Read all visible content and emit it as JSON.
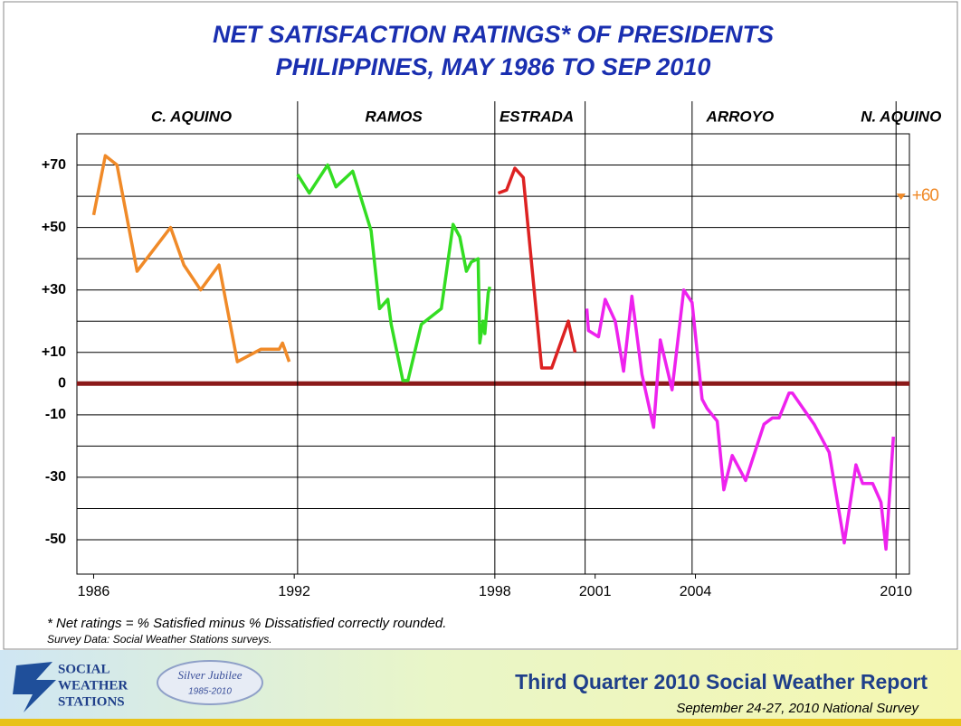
{
  "chart_data": {
    "type": "line",
    "title": "NET SATISFACTION RATINGS* OF PRESIDENTS",
    "subtitle": "PHILIPPINES, MAY 1986 TO SEP 2010",
    "xlim": [
      1985.5,
      2010.4
    ],
    "xticks": [
      1986,
      1992,
      1998,
      2001,
      2004,
      2010
    ],
    "ylim": [
      -61,
      80
    ],
    "yticks": [
      {
        "value": 70,
        "label": "+70"
      },
      {
        "value": 50,
        "label": "+50"
      },
      {
        "value": 30,
        "label": "+30"
      },
      {
        "value": 10,
        "label": "+10"
      },
      0,
      -10,
      -30,
      -50
    ],
    "minor_yticks": [
      60,
      40,
      20,
      -20,
      -40
    ],
    "grid": true,
    "zero_line_color": "#8b1a1a",
    "dividers": [
      1992.1,
      1998,
      2000.7,
      2003.9,
      2010
    ],
    "series": [
      {
        "name": "C. AQUINO",
        "color": "#f08a28",
        "x": [
          1986.0,
          1986.35,
          1986.7,
          1987.3,
          1988.3,
          1988.7,
          1989.2,
          1989.75,
          1990.3,
          1991.0,
          1991.55,
          1991.65,
          1991.85
        ],
        "values": [
          54,
          73,
          70,
          36,
          50,
          38,
          30,
          38,
          7,
          11,
          11,
          13,
          7
        ]
      },
      {
        "name": "RAMOS",
        "color": "#33dd22",
        "x": [
          1992.1,
          1992.45,
          1993.0,
          1993.25,
          1993.75,
          1994.3,
          1994.55,
          1994.8,
          1994.9,
          1995.25,
          1995.4,
          1995.8,
          1996.4,
          1996.75,
          1996.95,
          1997.15,
          1997.3,
          1997.5,
          1997.55,
          1997.65,
          1997.7,
          1997.8,
          1997.85
        ],
        "values": [
          67,
          61,
          70,
          63,
          68,
          49,
          24,
          27,
          19,
          1,
          1,
          19,
          24,
          51,
          47,
          36,
          39,
          40,
          13,
          20,
          16,
          29,
          31
        ]
      },
      {
        "name": "ESTRADA",
        "color": "#dd2222",
        "x": [
          1998.1,
          1998.35,
          1998.6,
          1998.85,
          1999.4,
          1999.7,
          2000.2,
          2000.4
        ],
        "values": [
          61,
          62,
          69,
          66,
          5,
          5,
          20,
          10
        ]
      },
      {
        "name": "ARROYO",
        "color": "#ee22ee",
        "x": [
          2000.75,
          2000.8,
          2001.1,
          2001.3,
          2001.6,
          2001.85,
          2002.1,
          2002.4,
          2002.75,
          2002.95,
          2003.3,
          2003.65,
          2003.9,
          2004.2,
          2004.35,
          2004.65,
          2004.85,
          2005.1,
          2005.5,
          2006.05,
          2006.3,
          2006.5,
          2006.8,
          2006.9,
          2007.55,
          2008.0,
          2008.45,
          2008.8,
          2009.0,
          2009.3,
          2009.55,
          2009.7,
          2009.92
        ],
        "values": [
          24,
          17,
          15,
          27,
          20,
          4,
          28,
          3,
          -14,
          14,
          -2,
          30,
          26,
          -5,
          -8,
          -12,
          -34,
          -23,
          -31,
          -13,
          -11,
          -11,
          -3,
          -3,
          -13,
          -22,
          -51,
          -26,
          -32,
          -32,
          -38,
          -53,
          -17
        ]
      },
      {
        "name": "N. AQUINO",
        "color": "#f08a28",
        "x": [
          2010.15
        ],
        "values": [
          60
        ],
        "value_labels": [
          "+60"
        ]
      }
    ],
    "notes": [
      "* Net ratings = % Satisfied minus % Dissatisfied correctly rounded.",
      "Survey Data: Social Weather Stations surveys."
    ]
  },
  "footer": {
    "org": [
      "SOCIAL",
      "WEATHER",
      "STATIONS"
    ],
    "badge": [
      "Silver Jubilee",
      "1985-2010"
    ],
    "report": "Third Quarter 2010 Social Weather Report",
    "survey": "September 24-27, 2010 National Survey"
  }
}
